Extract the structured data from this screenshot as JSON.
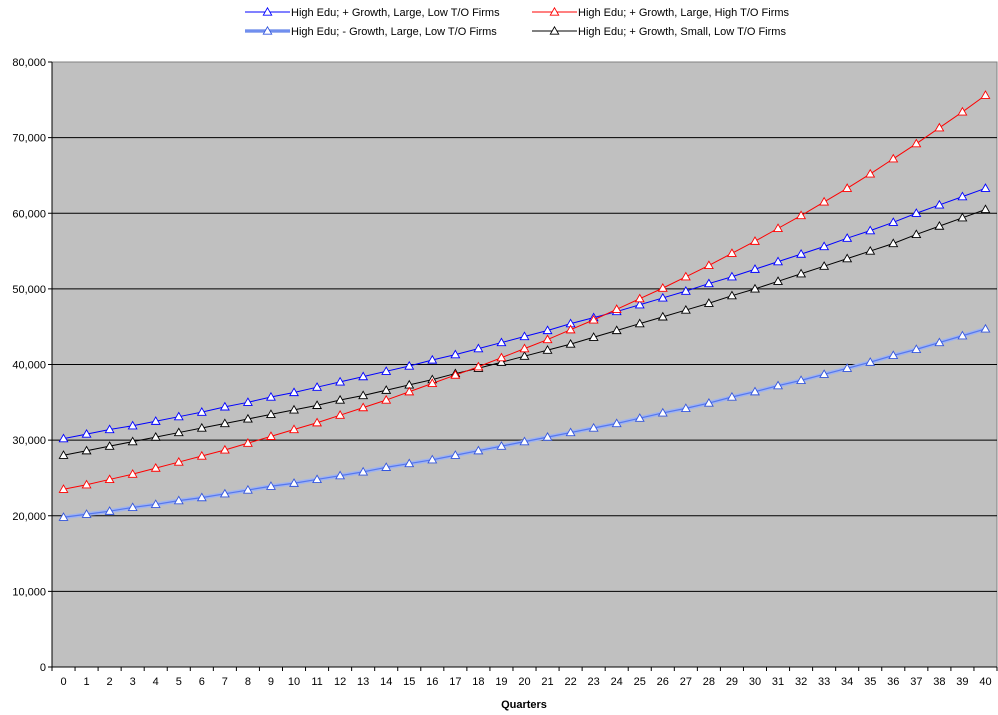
{
  "chart_data": {
    "type": "line",
    "xlabel": "Quarters",
    "ylabel": "",
    "ylim": [
      0,
      80000
    ],
    "yticks": [
      "0",
      "10,000",
      "20,000",
      "30,000",
      "40,000",
      "50,000",
      "60,000",
      "70,000",
      "80,000"
    ],
    "x": [
      0,
      1,
      2,
      3,
      4,
      5,
      6,
      7,
      8,
      9,
      10,
      11,
      12,
      13,
      14,
      15,
      16,
      17,
      18,
      19,
      20,
      21,
      22,
      23,
      24,
      25,
      26,
      27,
      28,
      29,
      30,
      31,
      32,
      33,
      34,
      35,
      36,
      37,
      38,
      39,
      40
    ],
    "grid": true,
    "legend_position": "top",
    "plot_background": "#c0c0c0",
    "series": [
      {
        "name": "High Edu; + Growth, Large, Low T/O Firms",
        "color": "#0000ff",
        "marker": "triangle",
        "values": [
          30200,
          30800,
          31400,
          31900,
          32500,
          33100,
          33700,
          34400,
          35000,
          35700,
          36300,
          37000,
          37700,
          38400,
          39100,
          39800,
          40600,
          41300,
          42100,
          42900,
          43700,
          44500,
          45400,
          46200,
          47000,
          47900,
          48800,
          49700,
          50700,
          51600,
          52600,
          53600,
          54600,
          55600,
          56700,
          57700,
          58800,
          60000,
          61100,
          62200,
          63300
        ]
      },
      {
        "name": "High Edu; + Growth, Large, High T/O Firms",
        "color": "#ff0000",
        "marker": "triangle",
        "values": [
          23500,
          24100,
          24800,
          25500,
          26300,
          27100,
          27900,
          28700,
          29600,
          30500,
          31400,
          32300,
          33300,
          34300,
          35300,
          36400,
          37500,
          38600,
          39700,
          40900,
          42100,
          43300,
          44600,
          45900,
          47300,
          48700,
          50100,
          51600,
          53100,
          54700,
          56300,
          58000,
          59700,
          61500,
          63300,
          65200,
          67200,
          69200,
          71300,
          73400,
          75600
        ]
      },
      {
        "name": "High Edu; - Growth, Large, Low T/O Firms",
        "color": "#6688ee",
        "marker": "triangle",
        "values": [
          19800,
          20200,
          20600,
          21100,
          21500,
          22000,
          22400,
          22900,
          23400,
          23900,
          24300,
          24800,
          25300,
          25800,
          26400,
          26900,
          27400,
          28000,
          28600,
          29200,
          29800,
          30400,
          31000,
          31600,
          32200,
          32900,
          33600,
          34200,
          34900,
          35700,
          36400,
          37200,
          37900,
          38700,
          39500,
          40300,
          41200,
          42000,
          42900,
          43800,
          44700
        ]
      },
      {
        "name": "High Edu; + Growth, Small, Low T/O Firms",
        "color": "#000000",
        "marker": "triangle",
        "values": [
          28000,
          28600,
          29200,
          29800,
          30400,
          31000,
          31600,
          32200,
          32800,
          33400,
          34000,
          34600,
          35300,
          35900,
          36600,
          37300,
          38000,
          38800,
          39500,
          40300,
          41100,
          41900,
          42700,
          43600,
          44500,
          45400,
          46300,
          47200,
          48100,
          49100,
          50000,
          51000,
          52000,
          53000,
          54000,
          55000,
          56000,
          57200,
          58300,
          59400,
          60500
        ]
      }
    ]
  }
}
